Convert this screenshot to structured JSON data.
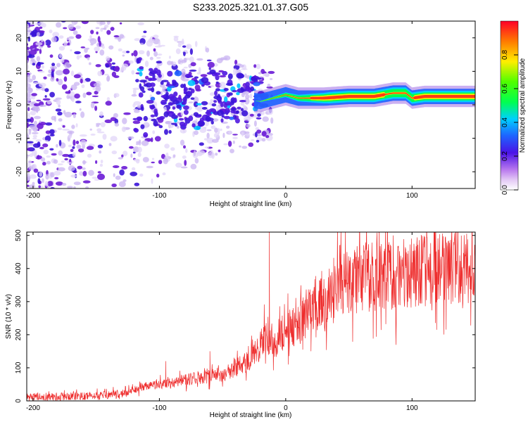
{
  "figure_title": "S233.2025.321.01.37.G05",
  "colors": {
    "snr_line": "#ee2b2b",
    "scatter_purple": "#6a1bd6",
    "scatter_light": "#c9b4f2",
    "background": "#ffffff"
  },
  "chart_data": [
    {
      "type": "heatmap",
      "title": "",
      "xlabel": "Height of straight line (km)",
      "ylabel": "Frequency (Hz)",
      "xlim": [
        -205,
        150
      ],
      "ylim": [
        -25,
        25
      ],
      "xticks": [
        -200,
        -100,
        0,
        100
      ],
      "xtick_labels": [
        "-200",
        "-100",
        "0",
        "100"
      ],
      "yticks": [
        -20,
        -10,
        0,
        10,
        20
      ],
      "ytick_labels": [
        "-20",
        "-10",
        "0",
        "10",
        "20"
      ],
      "colorbar": {
        "label": "Normalized spectral amplitude",
        "range": [
          0,
          1
        ],
        "ticks": [
          0.0,
          0.2,
          0.4,
          0.6,
          0.8
        ],
        "tick_labels": [
          "0.0",
          "0.2",
          "0.4",
          "0.6",
          "0.8"
        ],
        "colormap": "rainbow (white-magenta-blue-cyan-green-yellow-red)"
      },
      "ridge_frequency_hz": [
        [
          -30,
          1.5
        ],
        [
          -20,
          1.0
        ],
        [
          -10,
          2.0
        ],
        [
          0,
          3.0
        ],
        [
          10,
          2.0
        ],
        [
          30,
          2.0
        ],
        [
          50,
          2.5
        ],
        [
          70,
          2.5
        ],
        [
          85,
          3.5
        ],
        [
          95,
          3.5
        ],
        [
          100,
          2.0
        ],
        [
          110,
          2.5
        ],
        [
          130,
          2.5
        ],
        [
          150,
          2.5
        ]
      ],
      "noise_region_km": [
        -205,
        -20
      ],
      "noise_frequency_spread_hz": 25
    },
    {
      "type": "line",
      "title": "",
      "xlabel": "Height of straight line (km)",
      "ylabel": "SNR (10 * v/v)",
      "xlim": [
        -205,
        150
      ],
      "ylim": [
        0,
        510
      ],
      "xticks": [
        -200,
        -100,
        0,
        100
      ],
      "xtick_labels": [
        "-200",
        "-100",
        "0",
        "100"
      ],
      "yticks": [
        0,
        100,
        200,
        300,
        400,
        500
      ],
      "ytick_labels": [
        "0",
        "100",
        "200",
        "300",
        "400",
        "500"
      ],
      "series": [
        {
          "name": "SNR",
          "trend": [
            [
              -205,
              12
            ],
            [
              -150,
              15
            ],
            [
              -130,
              22
            ],
            [
              -110,
              45
            ],
            [
              -90,
              55
            ],
            [
              -70,
              70
            ],
            [
              -50,
              80
            ],
            [
              -40,
              100
            ],
            [
              -30,
              120
            ],
            [
              -20,
              170
            ],
            [
              -15,
              200
            ],
            [
              -10,
              160
            ],
            [
              -5,
              200
            ],
            [
              0,
              210
            ],
            [
              10,
              230
            ],
            [
              20,
              290
            ],
            [
              30,
              320
            ],
            [
              40,
              350
            ],
            [
              60,
              370
            ],
            [
              80,
              380
            ],
            [
              100,
              390
            ],
            [
              120,
              395
            ],
            [
              150,
              400
            ]
          ],
          "spikes": [
            [
              -13,
              510
            ],
            [
              -60,
              150
            ],
            [
              -95,
              120
            ],
            [
              20,
              150
            ],
            [
              95,
              460
            ],
            [
              85,
              500
            ],
            [
              140,
              280
            ],
            [
              150,
              470
            ]
          ]
        }
      ]
    }
  ]
}
